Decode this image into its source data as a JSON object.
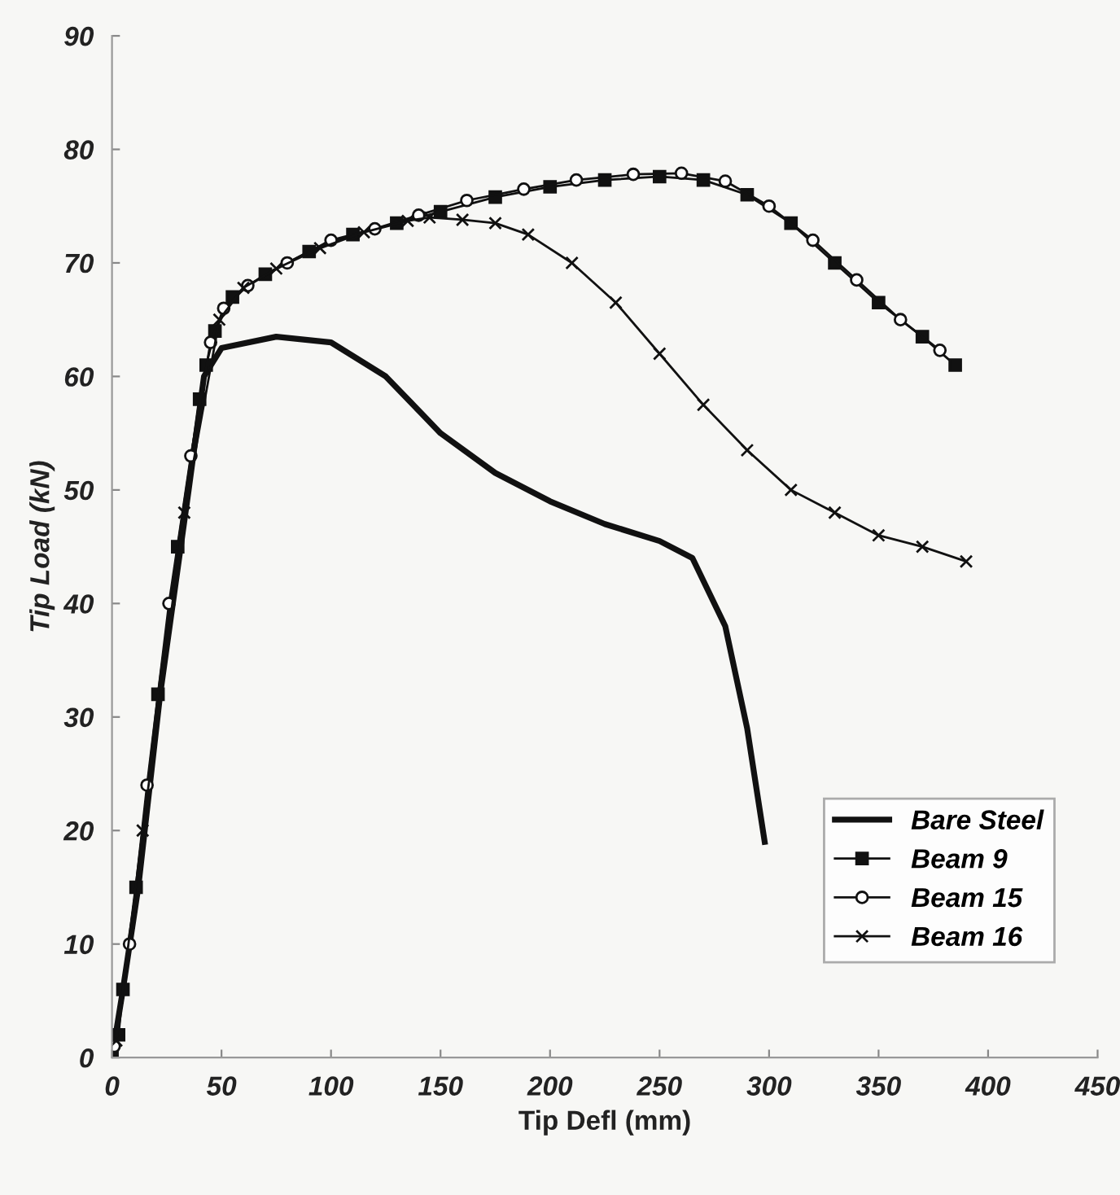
{
  "chart_data": {
    "type": "line",
    "xlabel": "Tip Defl (mm)",
    "ylabel": "Tip Load (kN)",
    "xlim": [
      0,
      450
    ],
    "xticks": [
      0,
      50,
      100,
      150,
      200,
      250,
      300,
      350,
      400,
      450
    ],
    "ylim": [
      0,
      90
    ],
    "yticks": [
      0,
      10,
      20,
      30,
      40,
      50,
      60,
      70,
      80,
      90
    ],
    "grid": false,
    "legend": "bottom right",
    "series": [
      {
        "name": "Bare Steel",
        "color": "#111111",
        "marker": "none",
        "x": [
          0,
          5,
          12,
          22,
          35,
          42,
          50,
          75,
          100,
          125,
          150,
          175,
          200,
          225,
          250,
          265,
          280,
          290,
          298
        ],
        "values": [
          0,
          6,
          15,
          32,
          50,
          60,
          62.5,
          63.5,
          63,
          60,
          55,
          51.5,
          49,
          47,
          45.5,
          44,
          38,
          29,
          19
        ]
      },
      {
        "name": "Beam 9",
        "color": "#111111",
        "marker": "square",
        "x": [
          0,
          3,
          5,
          11,
          21,
          30,
          40,
          43,
          47,
          55,
          70,
          90,
          110,
          130,
          150,
          175,
          200,
          225,
          250,
          270,
          290,
          310,
          330,
          350,
          370,
          385
        ],
        "values": [
          0,
          2,
          6,
          15,
          32,
          45,
          58,
          61,
          64,
          67,
          69,
          71,
          72.5,
          73.5,
          74.5,
          75.8,
          76.7,
          77.3,
          77.6,
          77.3,
          76,
          73.5,
          70,
          66.5,
          63.5,
          61
        ]
      },
      {
        "name": "Beam 15",
        "color": "#111111",
        "marker": "circle",
        "x": [
          1,
          8,
          16,
          26,
          36,
          45,
          51,
          62,
          80,
          100,
          120,
          140,
          162,
          188,
          212,
          238,
          260,
          280,
          300,
          320,
          340,
          360,
          378
        ],
        "values": [
          1,
          10,
          24,
          40,
          53,
          63,
          66,
          68,
          70,
          72,
          73,
          74.2,
          75.5,
          76.5,
          77.3,
          77.8,
          77.9,
          77.2,
          75,
          72,
          68.5,
          65,
          62.3
        ]
      },
      {
        "name": "Beam 16",
        "color": "#111111",
        "marker": "cross",
        "x": [
          2,
          14,
          33,
          49,
          60,
          75,
          95,
          115,
          135,
          145,
          160,
          175,
          190,
          210,
          230,
          250,
          270,
          290,
          310,
          330,
          350,
          370,
          390
        ],
        "values": [
          1.5,
          20,
          48,
          65,
          67.8,
          69.5,
          71.3,
          72.7,
          73.7,
          74,
          73.8,
          73.5,
          72.5,
          70,
          66.5,
          62,
          57.5,
          53.5,
          50,
          48,
          46,
          45,
          43.7
        ]
      }
    ]
  }
}
